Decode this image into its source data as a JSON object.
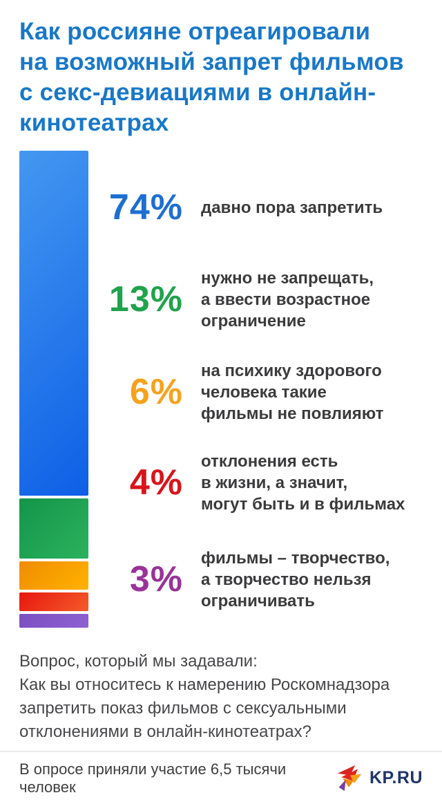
{
  "page": {
    "title": "Как россияне отреагировали\nна возможный запрет фильмов\nс секс-девиациями в онлайн-\nкинотеатрах",
    "question": "Вопрос, который мы задавали:\nКак вы относитесь к намерению Роскомнадзора\nзапретить показ фильмов с сексуальными\nотклонениями в онлайн-кинотеатрах?",
    "footer_note": "В опросе приняли участие 6,5 тысячи человек",
    "brand": "KP.RU"
  },
  "colors": {
    "title_blue": "#1878C8",
    "label_dark": "#3B3B3D",
    "brand_navy": "#1F3569",
    "divider": "#E9E9E9"
  },
  "rows": [
    {
      "percent": "74%",
      "color": "#1D6FD1",
      "label": "давно пора запретить"
    },
    {
      "percent": "13%",
      "color": "#1FA34C",
      "label": "нужно не запрещать,\nа ввести возрастное\nограничение"
    },
    {
      "percent": "6%",
      "color": "#F6A21D",
      "label": "на психику здорового\nчеловека такие\nфильмы не повлияют"
    },
    {
      "percent": "4%",
      "color": "#D9141B",
      "label": "отклонения есть\nв жизни, а значит,\nмогут быть и в фильмах"
    },
    {
      "percent": "3%",
      "color": "#993399",
      "label": "фильмы – творчество,\nа творчество нельзя\nограничивать"
    }
  ],
  "chart_data": {
    "type": "bar",
    "variant": "stacked-vertical-single-column",
    "title": "Как россияне отреагировали на возможный запрет фильмов с секс-девиациями в онлайн-кинотеатрах",
    "unit": "%",
    "categories": [
      "давно пора запретить",
      "нужно не запрещать, а ввести возрастное ограничение",
      "на психику здорового человека такие фильмы не повлияют",
      "отклонения есть в жизни, а значит, могут быть и в фильмах",
      "фильмы – творчество, а творчество нельзя ограничивать"
    ],
    "segment_names": [
      "ban-now",
      "age-restriction",
      "no-effect-on-psyche",
      "deviations-exist",
      "creativity-no-limits"
    ],
    "values": [
      74,
      13,
      6,
      4,
      3
    ],
    "segment_gradients": [
      [
        "#4498F0",
        "#0E5FE6"
      ],
      [
        "#149549",
        "#2BB25E"
      ],
      [
        "#F08C00",
        "#FFB200"
      ],
      [
        "#E6170F",
        "#F55B2A"
      ],
      [
        "#7A4FC0",
        "#8E62D2"
      ]
    ],
    "value_labels": [
      "74%",
      "13%",
      "6%",
      "4%",
      "3%"
    ],
    "legend_position": "right",
    "axes": "none",
    "grid": false,
    "source_note": "В опросе приняли участие 6,5 тысячи человек"
  }
}
